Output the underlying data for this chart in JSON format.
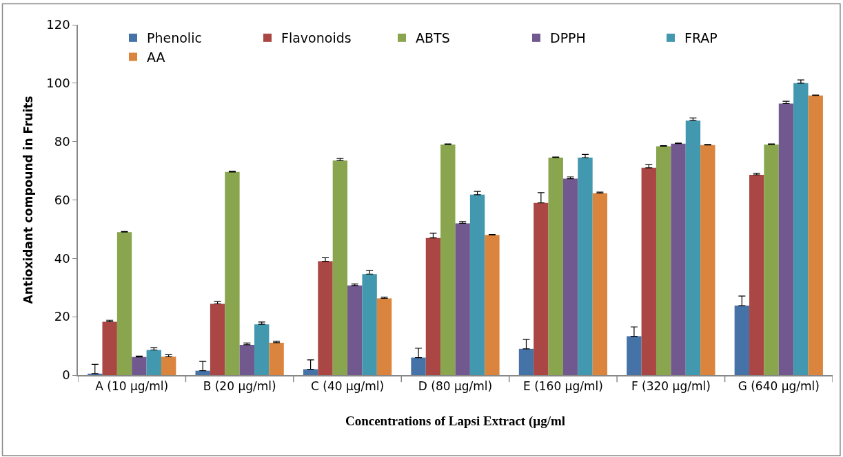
{
  "chart_data": {
    "type": "bar",
    "xlabel": "Concentrations of Lapsi Extract (µg/ml",
    "ylabel": "Antioxidant compound in Fruits",
    "categories": [
      "A (10 µg/ml)",
      "B (20 µg/ml)",
      "C (40 µg/ml)",
      "D (80 µg/ml)",
      "E (160 µg/ml)",
      "F (320 µg/ml)",
      "G (640 µg/ml)"
    ],
    "series": [
      {
        "name": "Phenolic",
        "color": "#4572a7",
        "values": [
          0.5,
          1.5,
          2,
          6,
          9,
          13.3,
          23.8
        ],
        "errors": [
          [
            0.5,
            3.7
          ],
          [
            1.5,
            4.7
          ],
          [
            2,
            5.2
          ],
          [
            6,
            9.2
          ],
          [
            9,
            12.2
          ],
          [
            13.3,
            16.5
          ],
          [
            23.8,
            27.1
          ]
        ]
      },
      {
        "name": "Flavonoids",
        "color": "#aa4643",
        "values": [
          18.3,
          24.4,
          39,
          47,
          59,
          71,
          68.6
        ],
        "errors": [
          [
            18.3,
            18.8
          ],
          [
            24.4,
            25.2
          ],
          [
            39,
            40.2
          ],
          [
            47,
            48.6
          ],
          [
            59,
            62.5
          ],
          [
            71,
            72.1
          ],
          [
            68.6,
            69.1
          ]
        ]
      },
      {
        "name": "ABTS",
        "color": "#89a54e",
        "values": [
          49,
          69.6,
          73.5,
          79,
          74.5,
          78.4,
          79
        ],
        "errors": [
          [
            49,
            49.2
          ],
          [
            69.6,
            69.8
          ],
          [
            73.5,
            74.2
          ],
          [
            79,
            79.2
          ],
          [
            74.5,
            74.7
          ],
          [
            78.4,
            78.6
          ],
          [
            79,
            79.2
          ]
        ]
      },
      {
        "name": "DPPH",
        "color": "#71588f",
        "values": [
          6.2,
          10.4,
          30.7,
          52,
          67.3,
          79.3,
          93
        ],
        "errors": [
          [
            6.2,
            6.5
          ],
          [
            10.4,
            11
          ],
          [
            30.7,
            31.2
          ],
          [
            52,
            52.6
          ],
          [
            67.3,
            67.9
          ],
          [
            79.3,
            79.5
          ],
          [
            93,
            93.8
          ]
        ]
      },
      {
        "name": "FRAP",
        "color": "#4198af",
        "values": [
          8.6,
          17.4,
          34.6,
          61.8,
          74.5,
          87.2,
          100
        ],
        "errors": [
          [
            8.6,
            9.4
          ],
          [
            17.4,
            18.2
          ],
          [
            34.6,
            35.8
          ],
          [
            61.8,
            62.9
          ],
          [
            74.5,
            75.6
          ],
          [
            87.2,
            88.1
          ],
          [
            100,
            101.1
          ]
        ]
      },
      {
        "name": "AA",
        "color": "#db843d",
        "values": [
          6.3,
          11.1,
          26.3,
          48,
          62.3,
          78.8,
          95.8
        ],
        "errors": [
          [
            6.3,
            7
          ],
          [
            11.1,
            11.6
          ],
          [
            26.3,
            26.7
          ],
          [
            48,
            48.2
          ],
          [
            62.3,
            62.7
          ],
          [
            78.8,
            79
          ],
          [
            95.8,
            95.9
          ]
        ]
      }
    ],
    "ylim": [
      0,
      120
    ],
    "yticks": [
      0,
      20,
      40,
      60,
      80,
      100,
      120
    ],
    "grid": false,
    "legend": "top"
  }
}
